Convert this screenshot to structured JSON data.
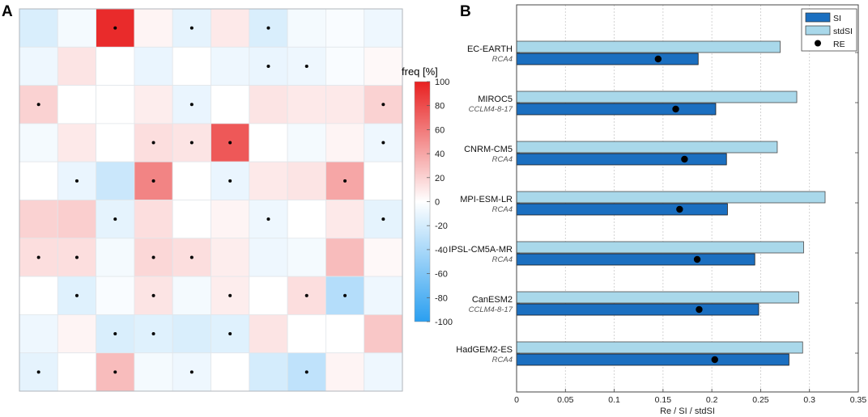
{
  "chart_data": [
    {
      "panel": "A",
      "type": "heatmap",
      "rows": 10,
      "cols": 10,
      "colorbar": {
        "label": "freq [%]",
        "range": [
          -100,
          100
        ],
        "ticks": [
          "100",
          "80",
          "60",
          "40",
          "20",
          "0",
          "-20",
          "-40",
          "-60",
          "-80",
          "-100"
        ],
        "colors": {
          "positive": "#e82020",
          "negative": "#2a9ff0",
          "zero": "#ffffff"
        }
      },
      "values": [
        [
          -18,
          -5,
          95,
          5,
          -12,
          10,
          -18,
          -5,
          -3,
          -8
        ],
        [
          -8,
          12,
          0,
          -10,
          0,
          -8,
          -10,
          -8,
          -3,
          3
        ],
        [
          20,
          0,
          0,
          8,
          -10,
          0,
          12,
          10,
          10,
          20
        ],
        [
          -5,
          10,
          0,
          15,
          12,
          75,
          0,
          -5,
          5,
          -8
        ],
        [
          0,
          -10,
          -25,
          55,
          0,
          -10,
          10,
          12,
          40,
          0
        ],
        [
          20,
          22,
          -12,
          15,
          0,
          5,
          -8,
          0,
          10,
          -12
        ],
        [
          15,
          15,
          -5,
          18,
          15,
          8,
          -8,
          -5,
          30,
          3
        ],
        [
          0,
          -15,
          -3,
          12,
          -5,
          8,
          0,
          15,
          -35,
          -8
        ],
        [
          -8,
          5,
          -18,
          -15,
          -18,
          -15,
          12,
          0,
          0,
          25
        ],
        [
          -12,
          0,
          30,
          -5,
          -8,
          0,
          -20,
          -30,
          5,
          -8
        ]
      ],
      "significant": [
        [
          0,
          0,
          1,
          0,
          1,
          0,
          1,
          0,
          0,
          0
        ],
        [
          0,
          0,
          0,
          0,
          0,
          0,
          1,
          1,
          0,
          0
        ],
        [
          1,
          0,
          0,
          0,
          1,
          0,
          0,
          0,
          0,
          1
        ],
        [
          0,
          0,
          0,
          1,
          1,
          1,
          0,
          0,
          0,
          1
        ],
        [
          0,
          1,
          0,
          1,
          0,
          1,
          0,
          0,
          1,
          0
        ],
        [
          0,
          0,
          1,
          0,
          0,
          0,
          1,
          0,
          0,
          1
        ],
        [
          1,
          1,
          0,
          1,
          1,
          0,
          0,
          0,
          0,
          0
        ],
        [
          0,
          1,
          0,
          1,
          0,
          1,
          0,
          1,
          1,
          0
        ],
        [
          0,
          0,
          1,
          1,
          0,
          1,
          0,
          0,
          0,
          0
        ],
        [
          1,
          0,
          1,
          0,
          1,
          0,
          0,
          1,
          0,
          0
        ]
      ]
    },
    {
      "panel": "B",
      "type": "bar",
      "orientation": "horizontal",
      "xlabel": "Re / SI / stdSI",
      "xlim": [
        0,
        0.35
      ],
      "xticks": [
        0,
        0.05,
        0.1,
        0.15,
        0.2,
        0.25,
        0.3,
        0.35
      ],
      "xtick_labels": [
        "0",
        "0.05",
        "0.1",
        "0.15",
        "0.2",
        "0.25",
        "0.3",
        "0.35"
      ],
      "grid": true,
      "legend": {
        "position": "top-right",
        "entries": [
          {
            "label": "SI",
            "kind": "patch",
            "color": "#1b6fc0"
          },
          {
            "label": "stdSI",
            "kind": "patch",
            "color": "#a9d8ea"
          },
          {
            "label": "RE",
            "kind": "marker",
            "color": "#000000"
          }
        ]
      },
      "series": [
        {
          "name": "stdSI",
          "color": "#a9d8ea",
          "values": [
            0.27,
            0.287,
            0.267,
            0.316,
            0.294,
            0.289,
            0.293
          ]
        },
        {
          "name": "SI",
          "color": "#1b6fc0",
          "values": [
            0.186,
            0.204,
            0.215,
            0.216,
            0.244,
            0.248,
            0.279
          ]
        },
        {
          "name": "RE",
          "color": "#000000",
          "values": [
            0.145,
            0.163,
            0.172,
            0.167,
            0.185,
            0.187,
            0.203
          ]
        }
      ],
      "models": [
        {
          "gcm": "EC-EARTH",
          "rcm": "RCA4"
        },
        {
          "gcm": "MIROC5",
          "rcm": "CCLM4-8-17"
        },
        {
          "gcm": "CNRM-CM5",
          "rcm": "RCA4"
        },
        {
          "gcm": "MPI-ESM-LR",
          "rcm": "RCA4"
        },
        {
          "gcm": "IPSL-CM5A-MR",
          "rcm": "RCA4"
        },
        {
          "gcm": "CanESM2",
          "rcm": "CCLM4-8-17"
        },
        {
          "gcm": "HadGEM2-ES",
          "rcm": "RCA4"
        }
      ]
    }
  ],
  "panel_labels": {
    "a": "A",
    "b": "B"
  }
}
